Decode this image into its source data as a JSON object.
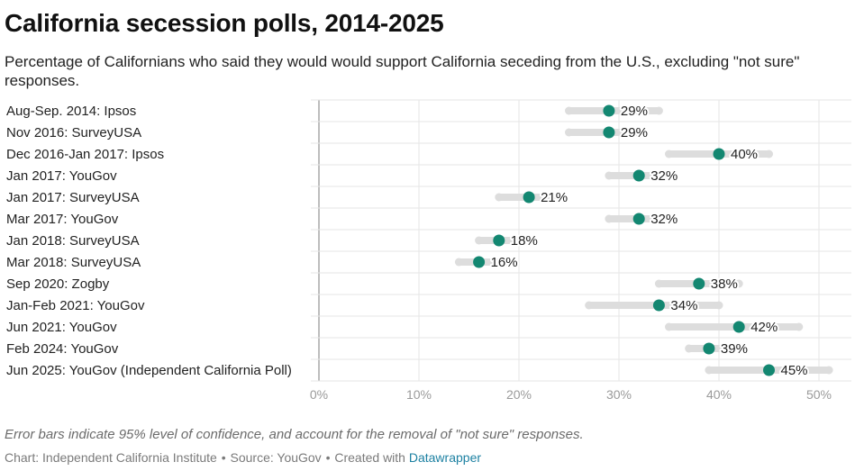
{
  "header": {
    "title": "California secession polls, 2014-2025",
    "subtitle": "Percentage of Californians who said they would would support California seceding from the U.S., excluding \"not sure\" responses."
  },
  "footer": {
    "notes": "Error bars indicate 95% level of confidence, and account for the removal of \"not sure\" responses.",
    "credit_prefix": "Chart: Independent California Institute",
    "separator": "•",
    "source": "Source: YouGov",
    "created_with": "Created with",
    "tool": "Datawrapper"
  },
  "colors": {
    "dot": "#138771",
    "error_bar": "#dddddd",
    "grid": "#e6e6e6",
    "baseline": "#bdbdbd"
  },
  "chart_data": {
    "type": "dot-range",
    "title": "California secession polls, 2014-2025",
    "xlabel": "",
    "ylabel": "",
    "xlim": [
      0,
      52
    ],
    "x_ticks": [
      0,
      10,
      20,
      30,
      40,
      50
    ],
    "x_tick_labels": [
      "0%",
      "10%",
      "20%",
      "30%",
      "40%",
      "50%"
    ],
    "grid": true,
    "rows": [
      {
        "label": "Aug-Sep. 2014: Ipsos",
        "value": 29,
        "value_label": "29%",
        "low": 25,
        "high": 34
      },
      {
        "label": "Nov 2016: SurveyUSA",
        "value": 29,
        "value_label": "29%",
        "low": 25,
        "high": 32
      },
      {
        "label": "Dec 2016-Jan 2017: Ipsos",
        "value": 40,
        "value_label": "40%",
        "low": 35,
        "high": 45
      },
      {
        "label": "Jan 2017: YouGov",
        "value": 32,
        "value_label": "32%",
        "low": 29,
        "high": 35
      },
      {
        "label": "Jan 2017: SurveyUSA",
        "value": 21,
        "value_label": "21%",
        "low": 18,
        "high": 24
      },
      {
        "label": "Mar 2017: YouGov",
        "value": 32,
        "value_label": "32%",
        "low": 29,
        "high": 35
      },
      {
        "label": "Jan 2018: SurveyUSA",
        "value": 18,
        "value_label": "18%",
        "low": 16,
        "high": 21
      },
      {
        "label": "Mar 2018: SurveyUSA",
        "value": 16,
        "value_label": "16%",
        "low": 14,
        "high": 19
      },
      {
        "label": "Sep 2020: Zogby",
        "value": 38,
        "value_label": "38%",
        "low": 34,
        "high": 42
      },
      {
        "label": "Jan-Feb 2021: YouGov",
        "value": 34,
        "value_label": "34%",
        "low": 27,
        "high": 40
      },
      {
        "label": "Jun 2021: YouGov",
        "value": 42,
        "value_label": "42%",
        "low": 35,
        "high": 48
      },
      {
        "label": "Feb 2024: YouGov",
        "value": 39,
        "value_label": "39%",
        "low": 37,
        "high": 41
      },
      {
        "label": "Jun 2025: YouGov (Independent California Poll)",
        "value": 45,
        "value_label": "45%",
        "low": 39,
        "high": 51
      }
    ]
  }
}
